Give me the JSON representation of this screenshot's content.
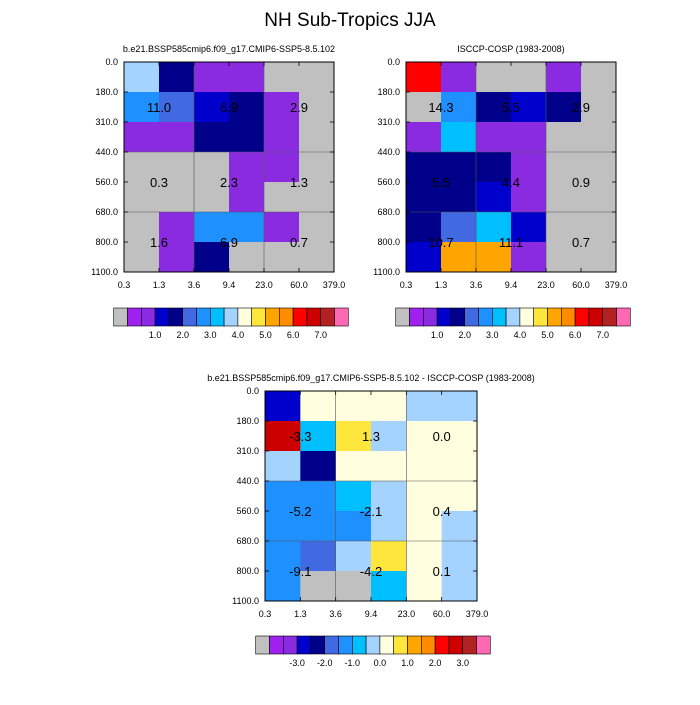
{
  "title": "NH Sub-Tropics JJA",
  "palettes": {
    "abs": [
      "#c0c0c0",
      "#a020f0",
      "#8a2be2",
      "#0000cd",
      "#00008b",
      "#4169e1",
      "#1e90ff",
      "#00bfff",
      "#a4d3ff",
      "#ffffe0",
      "#ffe63c",
      "#ffa500",
      "#ff8c00",
      "#ff0000",
      "#cd0000",
      "#b22222",
      "#ff69b4"
    ],
    "diff": [
      "#c0c0c0",
      "#a020f0",
      "#8a2be2",
      "#0000cd",
      "#00008b",
      "#4169e1",
      "#1e90ff",
      "#00bfff",
      "#a4d3ff",
      "#ffffe0",
      "#ffe63c",
      "#ffa500",
      "#ff8c00",
      "#ff0000",
      "#cd0000",
      "#b22222",
      "#ff69b4"
    ]
  },
  "chart_data": [
    {
      "id": "model",
      "type": "heatmap",
      "title": "b.e21.BSSP585cmip6.f09_g17.CMIP6-SSP5-8.5.102",
      "x_ticks": [
        "0.3",
        "1.3",
        "3.6",
        "9.4",
        "23.0",
        "60.0",
        "379.0"
      ],
      "y_ticks": [
        "0.0",
        "180.0",
        "310.0",
        "440.0",
        "560.0",
        "680.0",
        "800.0",
        "1100.0"
      ],
      "cells": [
        [
          8,
          4,
          2,
          2,
          0,
          0
        ],
        [
          6,
          5,
          3,
          4,
          2,
          0
        ],
        [
          2,
          2,
          4,
          4,
          2,
          0
        ],
        [
          0,
          0,
          0,
          2,
          2,
          0
        ],
        [
          0,
          0,
          0,
          2,
          0,
          0
        ],
        [
          0,
          2,
          6,
          6,
          2,
          0
        ],
        [
          0,
          2,
          4,
          0,
          0,
          0
        ]
      ],
      "summary_labels": [
        [
          "11.0",
          "6.9",
          "2.9"
        ],
        [
          "0.3",
          "2.3",
          "1.3"
        ],
        [
          "1.6",
          "6.9",
          "0.7"
        ]
      ],
      "colorbar": {
        "labels": [
          "1.0",
          "2.0",
          "3.0",
          "4.0",
          "5.0",
          "6.0",
          "7.0"
        ],
        "palette": "abs"
      }
    },
    {
      "id": "obs",
      "type": "heatmap",
      "title": "ISCCP-COSP (1983-2008)",
      "x_ticks": [
        "0.3",
        "1.3",
        "3.6",
        "9.4",
        "23.0",
        "60.0",
        "379.0"
      ],
      "y_ticks": [
        "0.0",
        "180.0",
        "310.0",
        "440.0",
        "560.0",
        "680.0",
        "800.0",
        "1100.0"
      ],
      "cells": [
        [
          13,
          2,
          0,
          0,
          2,
          0
        ],
        [
          0,
          6,
          4,
          3,
          4,
          0
        ],
        [
          2,
          7,
          2,
          2,
          0,
          0
        ],
        [
          4,
          4,
          4,
          2,
          0,
          0
        ],
        [
          4,
          4,
          3,
          2,
          0,
          0
        ],
        [
          4,
          5,
          7,
          3,
          0,
          0
        ],
        [
          3,
          11,
          11,
          2,
          0,
          0
        ]
      ],
      "summary_labels": [
        [
          "14.3",
          "5.5",
          "2.9"
        ],
        [
          "5.5",
          "4.4",
          "0.9"
        ],
        [
          "10.7",
          "11.1",
          "0.7"
        ]
      ],
      "colorbar": {
        "labels": [
          "1.0",
          "2.0",
          "3.0",
          "4.0",
          "5.0",
          "6.0",
          "7.0"
        ],
        "palette": "abs"
      }
    },
    {
      "id": "diff",
      "type": "heatmap",
      "title": "b.e21.BSSP585cmip6.f09_g17.CMIP6-SSP5-8.5.102 - ISCCP-COSP (1983-2008)",
      "x_ticks": [
        "0.3",
        "1.3",
        "3.6",
        "9.4",
        "23.0",
        "60.0",
        "379.0"
      ],
      "y_ticks": [
        "0.0",
        "180.0",
        "310.0",
        "440.0",
        "560.0",
        "680.0",
        "800.0",
        "1100.0"
      ],
      "cells": [
        [
          3,
          9,
          9,
          9,
          8,
          8
        ],
        [
          14,
          7,
          10,
          8,
          9,
          9
        ],
        [
          8,
          4,
          9,
          9,
          9,
          9
        ],
        [
          6,
          6,
          7,
          8,
          9,
          9
        ],
        [
          6,
          6,
          6,
          8,
          9,
          8
        ],
        [
          6,
          5,
          8,
          10,
          9,
          8
        ],
        [
          6,
          0,
          0,
          7,
          9,
          8
        ]
      ],
      "summary_labels": [
        [
          "-3.3",
          "1.3",
          "0.0"
        ],
        [
          "-5.2",
          "-2.1",
          "0.4"
        ],
        [
          "-9.1",
          "-4.2",
          "0.1"
        ]
      ],
      "colorbar": {
        "labels": [
          "-3.0",
          "-2.0",
          "-1.0",
          "0.0",
          "1.0",
          "2.0",
          "3.0"
        ],
        "palette": "diff"
      }
    }
  ]
}
